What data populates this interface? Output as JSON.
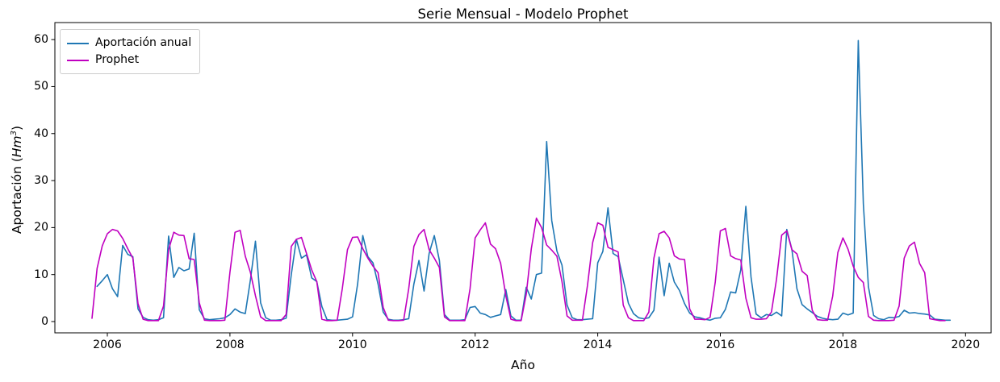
{
  "figure": {
    "title": "Serie Mensual - Modelo Prophet",
    "xlabel": "Año",
    "ylabel_prefix": "Aportación (",
    "ylabel_var": "Hm",
    "ylabel_sup": "3",
    "ylabel_suffix": ")"
  },
  "chart_data": {
    "type": "line",
    "title": "Serie Mensual - Modelo Prophet",
    "xlabel": "Año",
    "ylabel": "Aportación (Hm³)",
    "grid": false,
    "legend_position": "upper left",
    "x_ticks": [
      2006,
      2008,
      2010,
      2012,
      2014,
      2016,
      2018,
      2020
    ],
    "y_ticks": [
      0,
      10,
      20,
      30,
      40,
      50,
      60
    ],
    "xlim": [
      2005.13,
      2020.45
    ],
    "ylim": [
      -2.4,
      63.6
    ],
    "x_unit": "decimal_year_monthly",
    "series": [
      {
        "name": "Aportación anual",
        "color": "#1f77b4",
        "start_year": 2005,
        "start_month": 11,
        "monthly_values": [
          7.5,
          8.7,
          10.0,
          7.0,
          5.3,
          16.2,
          14.3,
          13.8,
          2.7,
          0.9,
          0.4,
          0.3,
          0.4,
          0.8,
          18.2,
          9.4,
          11.5,
          10.8,
          11.2,
          18.8,
          2.5,
          0.6,
          0.4,
          0.5,
          0.6,
          0.8,
          1.5,
          2.7,
          2.0,
          1.7,
          8.8,
          17.1,
          4.0,
          0.8,
          0.3,
          0.3,
          0.4,
          0.7,
          10.0,
          17.5,
          13.5,
          14.2,
          9.3,
          8.5,
          3.2,
          0.4,
          0.3,
          0.3,
          0.4,
          0.5,
          1.0,
          8.0,
          18.3,
          13.8,
          12.5,
          8.0,
          2.0,
          0.5,
          0.3,
          0.3,
          0.4,
          0.6,
          8.0,
          13.0,
          6.5,
          14.5,
          18.3,
          13.0,
          1.5,
          0.3,
          0.3,
          0.3,
          0.4,
          3.0,
          3.2,
          1.8,
          1.5,
          0.9,
          1.2,
          1.5,
          6.8,
          1.2,
          0.3,
          0.3,
          7.3,
          4.8,
          10.0,
          10.3,
          38.3,
          21.5,
          15.0,
          12.0,
          3.5,
          0.8,
          0.4,
          0.4,
          0.5,
          0.6,
          12.5,
          14.9,
          24.2,
          14.5,
          13.8,
          8.9,
          3.9,
          1.7,
          0.8,
          0.6,
          0.8,
          2.4,
          13.7,
          5.5,
          12.4,
          8.4,
          6.6,
          3.8,
          1.8,
          1.0,
          0.8,
          0.5,
          0.3,
          0.7,
          0.8,
          2.6,
          6.3,
          6.1,
          11.0,
          24.5,
          9.5,
          1.6,
          0.8,
          1.5,
          1.3,
          2.0,
          1.2,
          19.6,
          15.4,
          7.0,
          3.6,
          2.7,
          1.9,
          1.1,
          0.7,
          0.5,
          0.4,
          0.5,
          1.8,
          1.4,
          1.8,
          59.8,
          25.0,
          7.4,
          1.3,
          0.6,
          0.4,
          0.9,
          0.8,
          1.1,
          2.4,
          1.8,
          1.9,
          1.7,
          1.6,
          1.4,
          0.5,
          0.4,
          0.3,
          0.3
        ]
      },
      {
        "name": "Prophet",
        "color": "#c000c0",
        "start_year": 2005,
        "start_month": 10,
        "monthly_values": [
          0.7,
          11.3,
          16.1,
          18.7,
          19.6,
          19.3,
          17.7,
          15.5,
          13.5,
          3.8,
          0.5,
          0.2,
          0.2,
          0.2,
          3.3,
          15.3,
          19.0,
          18.4,
          18.3,
          13.4,
          13.2,
          4.0,
          0.3,
          0.2,
          0.2,
          0.2,
          0.3,
          10.5,
          19.0,
          19.4,
          13.9,
          10.5,
          5.5,
          1.0,
          0.2,
          0.2,
          0.2,
          0.2,
          1.5,
          16.0,
          17.5,
          17.9,
          14.5,
          11.0,
          8.5,
          0.5,
          0.2,
          0.2,
          0.3,
          7.0,
          15.3,
          17.9,
          18.0,
          15.5,
          13.5,
          11.8,
          10.4,
          3.0,
          0.3,
          0.2,
          0.2,
          0.3,
          7.0,
          16.0,
          18.5,
          19.6,
          15.3,
          13.5,
          11.5,
          1.0,
          0.2,
          0.2,
          0.2,
          0.2,
          7.0,
          17.8,
          19.5,
          21.0,
          16.5,
          15.5,
          12.4,
          5.5,
          0.5,
          0.2,
          0.2,
          5.8,
          15.5,
          22.0,
          20.0,
          16.3,
          15.2,
          13.9,
          8.5,
          1.2,
          0.3,
          0.3,
          0.3,
          7.7,
          16.8,
          21.0,
          20.5,
          15.8,
          15.3,
          14.8,
          3.5,
          0.8,
          0.2,
          0.2,
          0.2,
          2.0,
          13.5,
          18.7,
          19.2,
          17.8,
          14.0,
          13.3,
          13.2,
          2.7,
          0.5,
          0.5,
          0.4,
          0.9,
          8.4,
          19.3,
          19.8,
          14.0,
          13.4,
          13.1,
          5.0,
          0.8,
          0.5,
          0.5,
          0.6,
          2.0,
          9.0,
          18.4,
          19.3,
          15.3,
          14.4,
          10.7,
          9.8,
          2.4,
          0.4,
          0.3,
          0.3,
          5.4,
          14.7,
          17.8,
          15.4,
          11.8,
          9.4,
          8.3,
          1.1,
          0.3,
          0.2,
          0.2,
          0.2,
          0.3,
          3.3,
          13.5,
          16.1,
          16.9,
          12.4,
          10.4,
          0.6,
          0.4,
          0.2,
          0.2
        ]
      }
    ]
  }
}
